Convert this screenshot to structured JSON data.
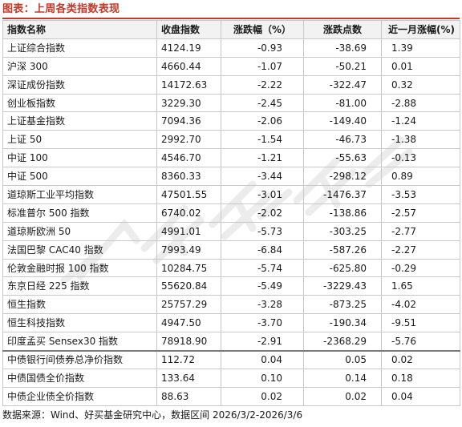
{
  "figure": {
    "title": "图表：上周各类指数表现"
  },
  "table": {
    "headers": {
      "name": "指数名称",
      "close": "收盘指数",
      "pct": "涨跌幅（%）",
      "pts": "涨跌点数",
      "month": "近一月涨幅(%)"
    },
    "equity_rows": [
      {
        "name": "上证综合指数",
        "close": "4124.19",
        "pct": "-0.93",
        "pts": "-38.69",
        "month": "1.39"
      },
      {
        "name": "沪深 300",
        "close": "4660.44",
        "pct": "-1.07",
        "pts": "-50.21",
        "month": "0.01"
      },
      {
        "name": "深证成份指数",
        "close": "14172.63",
        "pct": "-2.22",
        "pts": "-322.47",
        "month": "0.32"
      },
      {
        "name": "创业板指数",
        "close": "3229.30",
        "pct": "-2.45",
        "pts": "-81.00",
        "month": "-2.88"
      },
      {
        "name": "上证基金指数",
        "close": "7094.36",
        "pct": "-2.06",
        "pts": "-149.40",
        "month": "-1.24"
      },
      {
        "name": "上证 50",
        "close": "2992.70",
        "pct": "-1.54",
        "pts": "-46.73",
        "month": "-1.38"
      },
      {
        "name": "中证 100",
        "close": "4546.70",
        "pct": "-1.21",
        "pts": "-55.63",
        "month": "-0.13"
      },
      {
        "name": "中证 500",
        "close": "8360.33",
        "pct": "-3.44",
        "pts": "-298.12",
        "month": "0.89"
      },
      {
        "name": "道琼斯工业平均指数",
        "close": "47501.55",
        "pct": "-3.01",
        "pts": "-1476.37",
        "month": "-3.53"
      },
      {
        "name": "标准普尔 500 指数",
        "close": "6740.02",
        "pct": "-2.02",
        "pts": "-138.86",
        "month": "-2.57"
      },
      {
        "name": "道琼斯欧洲 50",
        "close": "4991.01",
        "pct": "-5.73",
        "pts": "-303.25",
        "month": "-2.77"
      },
      {
        "name": "法国巴黎 CAC40 指数",
        "close": "7993.49",
        "pct": "-6.84",
        "pts": "-587.26",
        "month": "-2.27"
      },
      {
        "name": "伦敦金融时报 100 指数",
        "close": "10284.75",
        "pct": "-5.74",
        "pts": "-625.80",
        "month": "-0.29"
      },
      {
        "name": "东京日经 225 指数",
        "close": "55620.84",
        "pct": "-5.49",
        "pts": "-3229.43",
        "month": "1.65"
      },
      {
        "name": "恒生指数",
        "close": "25757.29",
        "pct": "-3.28",
        "pts": "-873.25",
        "month": "-4.02"
      },
      {
        "name": "恒生科技指数",
        "close": "4947.50",
        "pct": "-3.70",
        "pts": "-190.34",
        "month": "-9.51"
      },
      {
        "name": "印度孟买 Sensex30 指数",
        "close": "78918.90",
        "pct": "-2.91",
        "pts": "-2368.29",
        "month": "-5.76"
      }
    ],
    "bond_rows": [
      {
        "name": "中债银行间债券总净价指数",
        "close": "112.72",
        "pct": "0.04",
        "pts": "0.05",
        "month": "0.02"
      },
      {
        "name": "中债国债全价指数",
        "close": "133.64",
        "pct": "0.10",
        "pts": "0.14",
        "month": "0.18"
      },
      {
        "name": "中债企业债全价指数",
        "close": "88.63",
        "pct": "0.02",
        "pts": "0.02",
        "month": "0.04"
      }
    ]
  },
  "source": "数据来源：Wind、好买基金研究中心，数据区间 2026/3/2-2026/3/6",
  "colors": {
    "title": "#c0392b",
    "header_bg": "#f2f2f2",
    "grid": "#c8c8c8",
    "watermark": "#e6e6e6"
  }
}
